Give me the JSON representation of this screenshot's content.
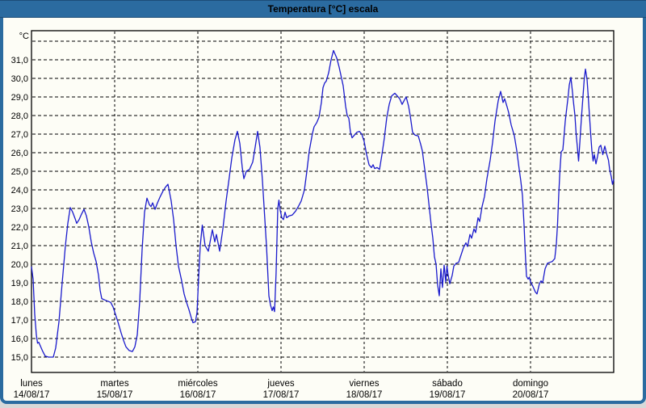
{
  "window": {
    "title": "Temperatura [°C] escala"
  },
  "colors": {
    "titlebar": "#2b6ba0",
    "titlebar_edge": "#1d4d78",
    "window_border": "#2b6ba0",
    "content_bg": "#fdfdf6",
    "plot_bg": "#fdfdf6",
    "grid": "#000000",
    "frame": "#000000",
    "label": "#000000",
    "title_text": "#ffffff",
    "line": "#1a1acc"
  },
  "chart_data": {
    "type": "line",
    "title": "Temperatura [°C] escala",
    "unit_label": "°C",
    "grid": "dashed",
    "legend": false,
    "x_axis": {
      "days": [
        {
          "name": "lunes",
          "date": "14/08/17"
        },
        {
          "name": "martes",
          "date": "15/08/17"
        },
        {
          "name": "miércoles",
          "date": "16/08/17"
        },
        {
          "name": "jueves",
          "date": "17/08/17"
        },
        {
          "name": "viernes",
          "date": "18/08/17"
        },
        {
          "name": "sábado",
          "date": "19/08/17"
        },
        {
          "name": "domingo",
          "date": "20/08/17"
        }
      ]
    },
    "y_axis": {
      "min": 15.0,
      "max": 31.0,
      "step": 1.0,
      "extra_gridline": 32.0,
      "tick_labels": [
        "15,0",
        "16,0",
        "17,0",
        "18,0",
        "19,0",
        "20,0",
        "21,0",
        "22,0",
        "23,0",
        "24,0",
        "25,0",
        "26,0",
        "27,0",
        "28,0",
        "29,0",
        "30,0",
        "31,0"
      ]
    },
    "series": [
      {
        "name": "Temperatura",
        "units": "°C",
        "x_units": "days from Monday 14/08/17 00:00",
        "points": [
          [
            0.0,
            19.85
          ],
          [
            0.019,
            19.2
          ],
          [
            0.039,
            17.3
          ],
          [
            0.058,
            16.2
          ],
          [
            0.073,
            15.75
          ],
          [
            0.087,
            15.8
          ],
          [
            0.107,
            15.6
          ],
          [
            0.136,
            15.3
          ],
          [
            0.165,
            15.05
          ],
          [
            0.204,
            15.0
          ],
          [
            0.262,
            15.0
          ],
          [
            0.291,
            15.5
          ],
          [
            0.33,
            16.9
          ],
          [
            0.369,
            19.0
          ],
          [
            0.408,
            21.0
          ],
          [
            0.437,
            22.2
          ],
          [
            0.466,
            23.05
          ],
          [
            0.495,
            22.8
          ],
          [
            0.524,
            22.45
          ],
          [
            0.544,
            22.2
          ],
          [
            0.573,
            22.4
          ],
          [
            0.602,
            22.7
          ],
          [
            0.631,
            22.95
          ],
          [
            0.66,
            22.6
          ],
          [
            0.689,
            22.0
          ],
          [
            0.718,
            21.2
          ],
          [
            0.748,
            20.6
          ],
          [
            0.777,
            20.15
          ],
          [
            0.806,
            19.4
          ],
          [
            0.825,
            18.6
          ],
          [
            0.845,
            18.15
          ],
          [
            0.893,
            18.05
          ],
          [
            0.951,
            17.95
          ],
          [
            0.981,
            17.7
          ],
          [
            1.01,
            17.3
          ],
          [
            1.039,
            16.9
          ],
          [
            1.078,
            16.3
          ],
          [
            1.107,
            15.9
          ],
          [
            1.136,
            15.55
          ],
          [
            1.175,
            15.35
          ],
          [
            1.214,
            15.3
          ],
          [
            1.243,
            15.55
          ],
          [
            1.272,
            16.2
          ],
          [
            1.301,
            18.0
          ],
          [
            1.33,
            20.8
          ],
          [
            1.359,
            22.8
          ],
          [
            1.388,
            23.55
          ],
          [
            1.417,
            23.2
          ],
          [
            1.437,
            23.1
          ],
          [
            1.456,
            23.3
          ],
          [
            1.485,
            22.95
          ],
          [
            1.515,
            23.3
          ],
          [
            1.544,
            23.6
          ],
          [
            1.583,
            23.95
          ],
          [
            1.612,
            24.15
          ],
          [
            1.641,
            24.3
          ],
          [
            1.68,
            23.4
          ],
          [
            1.709,
            22.4
          ],
          [
            1.738,
            21.0
          ],
          [
            1.767,
            19.9
          ],
          [
            1.806,
            19.1
          ],
          [
            1.835,
            18.4
          ],
          [
            1.864,
            17.95
          ],
          [
            1.893,
            17.55
          ],
          [
            1.922,
            17.1
          ],
          [
            1.942,
            16.85
          ],
          [
            1.971,
            16.9
          ],
          [
            1.99,
            17.4
          ],
          [
            2.01,
            19.3
          ],
          [
            2.029,
            21.0
          ],
          [
            2.053,
            22.1
          ],
          [
            2.087,
            21.0
          ],
          [
            2.126,
            20.7
          ],
          [
            2.175,
            21.85
          ],
          [
            2.204,
            21.2
          ],
          [
            2.223,
            21.6
          ],
          [
            2.262,
            20.7
          ],
          [
            2.301,
            21.9
          ],
          [
            2.34,
            23.4
          ],
          [
            2.379,
            24.7
          ],
          [
            2.408,
            25.7
          ],
          [
            2.447,
            26.7
          ],
          [
            2.476,
            27.15
          ],
          [
            2.505,
            26.5
          ],
          [
            2.534,
            25.2
          ],
          [
            2.553,
            24.6
          ],
          [
            2.583,
            25.0
          ],
          [
            2.621,
            25.1
          ],
          [
            2.66,
            25.5
          ],
          [
            2.689,
            26.3
          ],
          [
            2.718,
            27.15
          ],
          [
            2.747,
            26.3
          ],
          [
            2.777,
            24.5
          ],
          [
            2.796,
            23.1
          ],
          [
            2.825,
            21.0
          ],
          [
            2.854,
            18.3
          ],
          [
            2.874,
            17.8
          ],
          [
            2.893,
            17.5
          ],
          [
            2.908,
            17.7
          ],
          [
            2.922,
            17.45
          ],
          [
            2.941,
            19.5
          ],
          [
            2.961,
            23.0
          ],
          [
            2.975,
            23.45
          ],
          [
            2.99,
            22.9
          ],
          [
            3.01,
            22.5
          ],
          [
            3.029,
            22.4
          ],
          [
            3.049,
            22.8
          ],
          [
            3.068,
            22.5
          ],
          [
            3.097,
            22.6
          ],
          [
            3.136,
            22.65
          ],
          [
            3.175,
            22.85
          ],
          [
            3.214,
            23.15
          ],
          [
            3.243,
            23.4
          ],
          [
            3.282,
            24.0
          ],
          [
            3.311,
            25.0
          ],
          [
            3.34,
            26.1
          ],
          [
            3.379,
            27.05
          ],
          [
            3.398,
            27.4
          ],
          [
            3.427,
            27.6
          ],
          [
            3.456,
            27.9
          ],
          [
            3.485,
            28.7
          ],
          [
            3.505,
            29.5
          ],
          [
            3.524,
            29.75
          ],
          [
            3.544,
            29.85
          ],
          [
            3.573,
            30.3
          ],
          [
            3.602,
            31.0
          ],
          [
            3.631,
            31.5
          ],
          [
            3.67,
            31.1
          ],
          [
            3.699,
            30.6
          ],
          [
            3.728,
            30.0
          ],
          [
            3.748,
            29.6
          ],
          [
            3.777,
            28.5
          ],
          [
            3.796,
            28.0
          ],
          [
            3.816,
            27.85
          ],
          [
            3.835,
            27.1
          ],
          [
            3.854,
            26.8
          ],
          [
            3.883,
            26.95
          ],
          [
            3.913,
            27.1
          ],
          [
            3.942,
            27.15
          ],
          [
            3.971,
            27.0
          ],
          [
            4.0,
            26.6
          ],
          [
            4.029,
            25.9
          ],
          [
            4.058,
            25.35
          ],
          [
            4.087,
            25.2
          ],
          [
            4.107,
            25.35
          ],
          [
            4.126,
            25.15
          ],
          [
            4.155,
            25.2
          ],
          [
            4.184,
            25.1
          ],
          [
            4.214,
            25.9
          ],
          [
            4.243,
            26.8
          ],
          [
            4.272,
            27.9
          ],
          [
            4.301,
            28.6
          ],
          [
            4.33,
            29.05
          ],
          [
            4.369,
            29.2
          ],
          [
            4.398,
            29.05
          ],
          [
            4.427,
            28.9
          ],
          [
            4.456,
            28.6
          ],
          [
            4.485,
            28.85
          ],
          [
            4.505,
            29.0
          ],
          [
            4.534,
            28.5
          ],
          [
            4.553,
            28.0
          ],
          [
            4.582,
            27.1
          ],
          [
            4.612,
            26.95
          ],
          [
            4.65,
            26.9
          ],
          [
            4.68,
            26.45
          ],
          [
            4.699,
            26.1
          ],
          [
            4.728,
            25.1
          ],
          [
            4.757,
            24.1
          ],
          [
            4.786,
            22.9
          ],
          [
            4.806,
            22.1
          ],
          [
            4.825,
            21.4
          ],
          [
            4.845,
            20.4
          ],
          [
            4.864,
            20.0
          ],
          [
            4.883,
            18.9
          ],
          [
            4.903,
            18.3
          ],
          [
            4.922,
            19.75
          ],
          [
            4.941,
            18.75
          ],
          [
            4.961,
            19.95
          ],
          [
            4.981,
            19.05
          ],
          [
            4.995,
            19.9
          ],
          [
            5.01,
            19.4
          ],
          [
            5.029,
            18.95
          ],
          [
            5.058,
            19.4
          ],
          [
            5.078,
            19.9
          ],
          [
            5.107,
            20.05
          ],
          [
            5.136,
            20.1
          ],
          [
            5.165,
            20.5
          ],
          [
            5.194,
            20.9
          ],
          [
            5.223,
            21.15
          ],
          [
            5.243,
            20.95
          ],
          [
            5.272,
            21.6
          ],
          [
            5.291,
            21.4
          ],
          [
            5.32,
            21.9
          ],
          [
            5.34,
            21.7
          ],
          [
            5.369,
            22.5
          ],
          [
            5.388,
            22.3
          ],
          [
            5.417,
            23.1
          ],
          [
            5.447,
            23.65
          ],
          [
            5.476,
            24.6
          ],
          [
            5.515,
            25.6
          ],
          [
            5.544,
            26.55
          ],
          [
            5.573,
            27.7
          ],
          [
            5.612,
            28.8
          ],
          [
            5.641,
            29.3
          ],
          [
            5.67,
            28.7
          ],
          [
            5.689,
            28.9
          ],
          [
            5.719,
            28.45
          ],
          [
            5.738,
            28.15
          ],
          [
            5.767,
            27.5
          ],
          [
            5.806,
            26.9
          ],
          [
            5.835,
            26.1
          ],
          [
            5.864,
            25.1
          ],
          [
            5.883,
            24.5
          ],
          [
            5.903,
            23.7
          ],
          [
            5.922,
            22.1
          ],
          [
            5.937,
            20.6
          ],
          [
            5.951,
            19.35
          ],
          [
            5.971,
            19.2
          ],
          [
            5.985,
            19.3
          ],
          [
            6.0,
            19.05
          ],
          [
            6.029,
            18.8
          ],
          [
            6.058,
            18.5
          ],
          [
            6.078,
            18.4
          ],
          [
            6.107,
            18.95
          ],
          [
            6.126,
            19.1
          ],
          [
            6.146,
            19.0
          ],
          [
            6.175,
            19.75
          ],
          [
            6.204,
            20.05
          ],
          [
            6.233,
            20.1
          ],
          [
            6.262,
            20.15
          ],
          [
            6.291,
            20.3
          ],
          [
            6.311,
            21.1
          ],
          [
            6.325,
            22.2
          ],
          [
            6.34,
            23.8
          ],
          [
            6.354,
            25.1
          ],
          [
            6.369,
            26.05
          ],
          [
            6.388,
            26.15
          ],
          [
            6.403,
            26.9
          ],
          [
            6.417,
            27.7
          ],
          [
            6.437,
            28.45
          ],
          [
            6.451,
            29.0
          ],
          [
            6.466,
            29.65
          ],
          [
            6.485,
            30.05
          ],
          [
            6.5,
            29.45
          ],
          [
            6.515,
            28.8
          ],
          [
            6.534,
            28.0
          ],
          [
            6.549,
            27.0
          ],
          [
            6.563,
            26.3
          ],
          [
            6.578,
            25.55
          ],
          [
            6.592,
            26.5
          ],
          [
            6.612,
            27.85
          ],
          [
            6.631,
            29.05
          ],
          [
            6.646,
            29.95
          ],
          [
            6.66,
            30.5
          ],
          [
            6.68,
            29.95
          ],
          [
            6.694,
            29.0
          ],
          [
            6.709,
            28.0
          ],
          [
            6.723,
            27.0
          ],
          [
            6.738,
            26.1
          ],
          [
            6.752,
            25.55
          ],
          [
            6.767,
            25.9
          ],
          [
            6.786,
            25.4
          ],
          [
            6.806,
            25.8
          ],
          [
            6.825,
            26.3
          ],
          [
            6.845,
            26.4
          ],
          [
            6.869,
            25.9
          ],
          [
            6.893,
            26.35
          ],
          [
            6.917,
            25.9
          ],
          [
            6.937,
            25.6
          ],
          [
            6.951,
            25.1
          ],
          [
            6.971,
            24.7
          ],
          [
            6.985,
            24.3
          ],
          [
            7.0,
            24.55
          ]
        ]
      }
    ]
  }
}
